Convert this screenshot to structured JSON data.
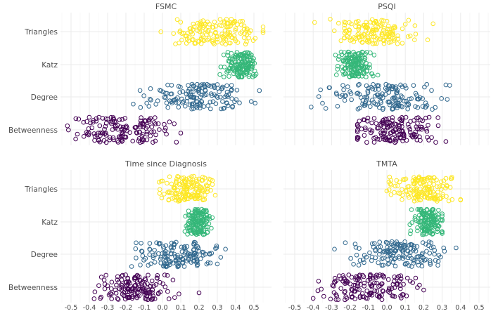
{
  "chart_data": [
    {
      "type": "scatter",
      "title": "FSMC",
      "categories": [
        "Betweenness",
        "Degree",
        "Katz",
        "Triangles"
      ],
      "xlim": [
        -0.55,
        0.55
      ],
      "x_ticks": [
        "-0.5",
        "-0.4",
        "-0.3",
        "-0.2",
        "-0.1",
        "0.0",
        "0.1",
        "0.2",
        "0.3",
        "0.4",
        "0.5"
      ],
      "grid": true,
      "series": [
        {
          "name": "Triangles",
          "color": "#fde725",
          "n": 150,
          "center": 0.3,
          "sd": 0.12,
          "min": -0.12,
          "max": 0.55
        },
        {
          "name": "Katz",
          "color": "#35b779",
          "n": 150,
          "center": 0.43,
          "sd": 0.045,
          "min": 0.16,
          "max": 0.52
        },
        {
          "name": "Degree",
          "color": "#31688e",
          "n": 150,
          "center": 0.2,
          "sd": 0.13,
          "min": -0.16,
          "max": 0.53
        },
        {
          "name": "Betweenness",
          "color": "#440154",
          "n": 150,
          "center": -0.22,
          "sd": 0.13,
          "min": -0.52,
          "max": 0.1
        }
      ]
    },
    {
      "type": "scatter",
      "title": "PSQI",
      "categories": [
        "Betweenness",
        "Degree",
        "Katz",
        "Triangles"
      ],
      "xlim": [
        -0.55,
        0.55
      ],
      "x_ticks": [
        "-0.5",
        "-0.4",
        "-0.3",
        "-0.2",
        "-0.1",
        "0.0",
        "0.1",
        "0.2",
        "0.3",
        "0.4",
        "0.5"
      ],
      "grid": true,
      "series": [
        {
          "name": "Triangles",
          "color": "#fde725",
          "n": 150,
          "center": -0.08,
          "sd": 0.11,
          "min": -0.4,
          "max": 0.38
        },
        {
          "name": "Katz",
          "color": "#35b779",
          "n": 150,
          "center": -0.18,
          "sd": 0.045,
          "min": -0.3,
          "max": 0.05
        },
        {
          "name": "Degree",
          "color": "#31688e",
          "n": 150,
          "center": 0.0,
          "sd": 0.15,
          "min": -0.45,
          "max": 0.42
        },
        {
          "name": "Betweenness",
          "color": "#440154",
          "n": 150,
          "center": 0.05,
          "sd": 0.11,
          "min": -0.16,
          "max": 0.38
        }
      ]
    },
    {
      "type": "scatter",
      "title": "Time since Diagnosis",
      "categories": [
        "Betweenness",
        "Degree",
        "Katz",
        "Triangles"
      ],
      "xlim": [
        -0.55,
        0.55
      ],
      "x_ticks": [
        "-0.5",
        "-0.4",
        "-0.3",
        "-0.2",
        "-0.1",
        "0.0",
        "0.1",
        "0.2",
        "0.3",
        "0.4",
        "0.5"
      ],
      "grid": true,
      "series": [
        {
          "name": "Triangles",
          "color": "#fde725",
          "n": 150,
          "center": 0.14,
          "sd": 0.08,
          "min": -0.06,
          "max": 0.35
        },
        {
          "name": "Katz",
          "color": "#35b779",
          "n": 150,
          "center": 0.2,
          "sd": 0.035,
          "min": 0.1,
          "max": 0.36
        },
        {
          "name": "Degree",
          "color": "#31688e",
          "n": 150,
          "center": 0.08,
          "sd": 0.11,
          "min": -0.2,
          "max": 0.35
        },
        {
          "name": "Betweenness",
          "color": "#440154",
          "n": 150,
          "center": -0.15,
          "sd": 0.09,
          "min": -0.4,
          "max": 0.2
        }
      ]
    },
    {
      "type": "scatter",
      "title": "TMTA",
      "categories": [
        "Betweenness",
        "Degree",
        "Katz",
        "Triangles"
      ],
      "xlim": [
        -0.55,
        0.55
      ],
      "x_ticks": [
        "-0.5",
        "-0.4",
        "-0.3",
        "-0.2",
        "-0.1",
        "0.0",
        "0.1",
        "0.2",
        "0.3",
        "0.4",
        "0.5"
      ],
      "grid": true,
      "series": [
        {
          "name": "Triangles",
          "color": "#fde725",
          "n": 150,
          "center": 0.2,
          "sd": 0.09,
          "min": -0.2,
          "max": 0.4
        },
        {
          "name": "Katz",
          "color": "#35b779",
          "n": 150,
          "center": 0.22,
          "sd": 0.04,
          "min": 0.05,
          "max": 0.3
        },
        {
          "name": "Degree",
          "color": "#31688e",
          "n": 150,
          "center": 0.06,
          "sd": 0.13,
          "min": -0.35,
          "max": 0.4
        },
        {
          "name": "Betweenness",
          "color": "#440154",
          "n": 150,
          "center": -0.1,
          "sd": 0.12,
          "min": -0.4,
          "max": 0.2
        }
      ]
    }
  ]
}
